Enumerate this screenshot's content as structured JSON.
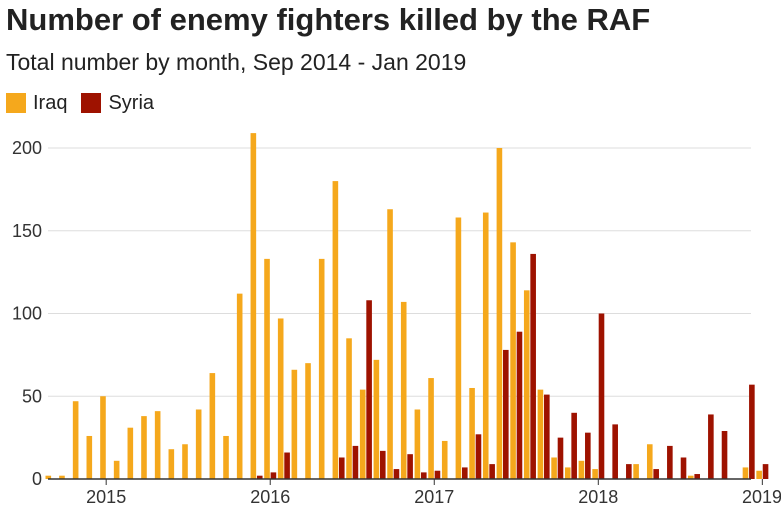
{
  "chart_data": {
    "type": "bar",
    "title": "Number of enemy fighters killed by the RAF",
    "subtitle": "Total number by month, Sep 2014 - Jan 2019",
    "ylim": [
      0,
      215
    ],
    "yticks": [
      0,
      50,
      100,
      150,
      200
    ],
    "x_ticks": [
      "2015",
      "2016",
      "2017",
      "2018",
      "2019"
    ],
    "grid": true,
    "legend_position": "top-left",
    "months": [
      "Sep 2014",
      "Oct 2014",
      "Nov 2014",
      "Dec 2014",
      "Jan 2015",
      "Feb 2015",
      "Mar 2015",
      "Apr 2015",
      "May 2015",
      "Jun 2015",
      "Jul 2015",
      "Aug 2015",
      "Sep 2015",
      "Oct 2015",
      "Nov 2015",
      "Dec 2015",
      "Jan 2016",
      "Feb 2016",
      "Mar 2016",
      "Apr 2016",
      "May 2016",
      "Jun 2016",
      "Jul 2016",
      "Aug 2016",
      "Sep 2016",
      "Oct 2016",
      "Nov 2016",
      "Dec 2016",
      "Jan 2017",
      "Feb 2017",
      "Mar 2017",
      "Apr 2017",
      "May 2017",
      "Jun 2017",
      "Jul 2017",
      "Aug 2017",
      "Sep 2017",
      "Oct 2017",
      "Nov 2017",
      "Dec 2017",
      "Jan 2018",
      "Feb 2018",
      "Mar 2018",
      "Apr 2018",
      "May 2018",
      "Jun 2018",
      "Jul 2018",
      "Aug 2018",
      "Sep 2018",
      "Oct 2018",
      "Nov 2018",
      "Dec 2018",
      "Jan 2019"
    ],
    "series": [
      {
        "name": "Iraq",
        "color": "#f5a81c",
        "values": [
          2,
          2,
          47,
          26,
          50,
          11,
          31,
          38,
          41,
          18,
          21,
          42,
          64,
          26,
          112,
          209,
          133,
          97,
          66,
          70,
          133,
          180,
          85,
          54,
          72,
          163,
          107,
          42,
          61,
          23,
          158,
          55,
          161,
          200,
          143,
          114,
          54,
          13,
          7,
          11,
          6,
          0,
          0,
          9,
          21,
          0,
          0,
          2,
          0,
          0,
          0,
          7,
          5
        ]
      },
      {
        "name": "Syria",
        "color": "#9e1200",
        "values": [
          0,
          0,
          0,
          0,
          0,
          0,
          0,
          0,
          0,
          0,
          0,
          0,
          0,
          0,
          0,
          2,
          4,
          16,
          0,
          0,
          0,
          13,
          20,
          108,
          17,
          6,
          15,
          4,
          5,
          0,
          7,
          27,
          9,
          78,
          89,
          136,
          51,
          25,
          40,
          28,
          100,
          33,
          9,
          0,
          6,
          20,
          13,
          3,
          39,
          29,
          0,
          57,
          9
        ]
      }
    ]
  }
}
